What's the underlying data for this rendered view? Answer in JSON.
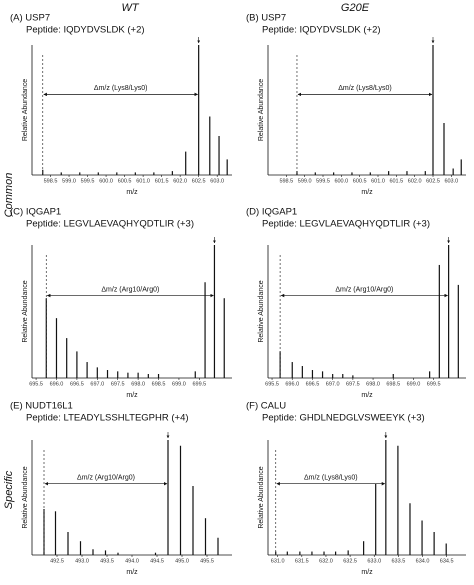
{
  "column_headers": [
    "WT",
    "G20E"
  ],
  "row_labels": [
    "Common",
    "Specific"
  ],
  "chart_data": [
    {
      "type": "bar",
      "title": "(A) USP7",
      "subtitle": "Peptide: IQDYDVSLDK (+2)",
      "annotation": "Δm/z (Lys8/Lys0)",
      "x_label": "m/z",
      "y_label": "Relative Abundance",
      "color": "#111111",
      "x": [
        598.29,
        598.79,
        599.29,
        599.79,
        600.29,
        600.79,
        601.29,
        601.79,
        602.15,
        602.5,
        602.8,
        603.05,
        603.27
      ],
      "values": [
        4,
        2,
        2,
        2,
        2,
        2,
        2,
        3,
        18,
        100,
        45,
        30,
        12
      ],
      "xlim": [
        598.0,
        603.4
      ],
      "ylim": [
        0,
        100
      ],
      "xticks": [
        598.5,
        {
          "value": 599,
          "label": "599.0"
        },
        599.5,
        {
          "value": 600,
          "label": "600.0"
        },
        600.5,
        {
          "value": 601,
          "label": "601.0"
        },
        601.5,
        {
          "value": 602,
          "label": "602.0"
        },
        602.5,
        {
          "value": 603,
          "label": "603.0"
        }
      ]
    },
    {
      "type": "bar",
      "title": "(B) USP7",
      "subtitle": "Peptide: IQDYDVSLDK (+2)",
      "annotation": "Δm/z (Lys8/Lys0)",
      "x_label": "m/z",
      "y_label": "Relative Abundance",
      "color": "#111111",
      "x": [
        598.79,
        599.29,
        599.79,
        600.29,
        600.79,
        601.29,
        601.79,
        602.29,
        602.5,
        602.8,
        603.05,
        603.27
      ],
      "values": [
        3,
        2,
        2,
        2,
        2,
        3,
        3,
        3,
        100,
        40,
        5,
        12
      ],
      "xlim": [
        598.0,
        603.4
      ],
      "ylim": [
        0,
        100
      ],
      "xticks": [
        598.5,
        {
          "value": 599,
          "label": "599.0"
        },
        599.5,
        {
          "value": 600,
          "label": "600.0"
        },
        600.5,
        {
          "value": 601,
          "label": "601.0"
        },
        601.5,
        {
          "value": 602,
          "label": "602.0"
        },
        602.5,
        {
          "value": 603,
          "label": "603.0"
        }
      ]
    },
    {
      "type": "bar",
      "title": "(C) IQGAP1",
      "subtitle": "Peptide: LEGVLAEVAQHYQDTLIR (+3)",
      "annotation": "Δm/z (Arg10/Arg0)",
      "x_label": "m/z",
      "y_label": "Relative Abundance",
      "color": "#111111",
      "x": [
        695.75,
        696.0,
        696.25,
        696.5,
        696.75,
        697.0,
        697.25,
        697.5,
        697.75,
        698.0,
        698.25,
        698.5,
        699.4,
        699.64,
        699.87,
        700.11
      ],
      "values": [
        60,
        45,
        30,
        20,
        12,
        8,
        6,
        5,
        4,
        4,
        3,
        3,
        5,
        72,
        100,
        60
      ],
      "xlim": [
        695.4,
        700.3
      ],
      "ylim": [
        0,
        100
      ],
      "xticks": [
        695.5,
        {
          "value": 696,
          "label": "696.0"
        },
        696.5,
        {
          "value": 697,
          "label": "697.0"
        },
        697.5,
        {
          "value": 698,
          "label": "698.0"
        },
        698.5,
        {
          "value": 699,
          "label": "699.0"
        },
        699.5
      ]
    },
    {
      "type": "bar",
      "title": "(D) IQGAP1",
      "subtitle": "Peptide: LEGVLAEVAQHYQDTLIR (+3)",
      "annotation": "Δm/z (Arg10/Arg0)",
      "x_label": "m/z",
      "y_label": "Relative Abundance",
      "color": "#111111",
      "x": [
        695.7,
        696.0,
        696.25,
        696.5,
        696.75,
        697.0,
        697.25,
        697.5,
        698.5,
        699.4,
        699.64,
        699.87,
        700.11
      ],
      "values": [
        20,
        12,
        9,
        6,
        5,
        3,
        3,
        2,
        3,
        5,
        85,
        100,
        70
      ],
      "xlim": [
        695.4,
        700.3
      ],
      "ylim": [
        0,
        100
      ],
      "xticks": [
        695.5,
        {
          "value": 696,
          "label": "696.0"
        },
        696.5,
        {
          "value": 697,
          "label": "697.0"
        },
        697.5,
        {
          "value": 698,
          "label": "698.0"
        },
        698.5,
        {
          "value": 699,
          "label": "699.0"
        },
        699.5
      ]
    },
    {
      "type": "bar",
      "title": "(E) NUDT16L1",
      "subtitle": "Peptide: LTEADYLSSHLTEGPHR (+4)",
      "annotation": "Δm/z (Arg10/Arg0)",
      "x_label": "m/z",
      "y_label": "Relative Abundance",
      "color": "#111111",
      "x": [
        492.24,
        492.47,
        492.72,
        492.97,
        493.22,
        493.47,
        493.72,
        494.47,
        494.72,
        494.97,
        495.22,
        495.47,
        495.72
      ],
      "values": [
        40,
        38,
        20,
        12,
        5,
        4,
        2,
        2,
        100,
        95,
        60,
        32,
        15
      ],
      "xlim": [
        492.0,
        496.0
      ],
      "ylim": [
        0,
        100
      ],
      "xticks": [
        492.5,
        {
          "value": 493,
          "label": "493.0"
        },
        493.5,
        {
          "value": 494,
          "label": "494.0"
        },
        494.5,
        {
          "value": 495,
          "label": "495.0"
        },
        495.5
      ]
    },
    {
      "type": "bar",
      "title": "(F) CALU",
      "subtitle": "Peptide: GHDLNEDGLVSWEEYK (+3)",
      "annotation": "Δm/z (Lys8/Lys0)",
      "x_label": "m/z",
      "y_label": "Relative Abundance",
      "color": "#111111",
      "x": [
        630.96,
        631.2,
        631.46,
        631.71,
        631.96,
        632.2,
        632.46,
        632.78,
        633.03,
        633.24,
        633.49,
        633.74,
        633.99,
        634.24,
        634.49
      ],
      "values": [
        3,
        3,
        3,
        3,
        3,
        3,
        4,
        12,
        62,
        100,
        95,
        45,
        30,
        20,
        10
      ],
      "xlim": [
        630.8,
        634.9
      ],
      "ylim": [
        0,
        100
      ],
      "xticks": [
        {
          "value": 631,
          "label": "631.0"
        },
        631.5,
        {
          "value": 632,
          "label": "632.0"
        },
        632.5,
        {
          "value": 633,
          "label": "633.0"
        },
        633.5,
        {
          "value": 634,
          "label": "634.0"
        },
        634.5
      ]
    }
  ]
}
